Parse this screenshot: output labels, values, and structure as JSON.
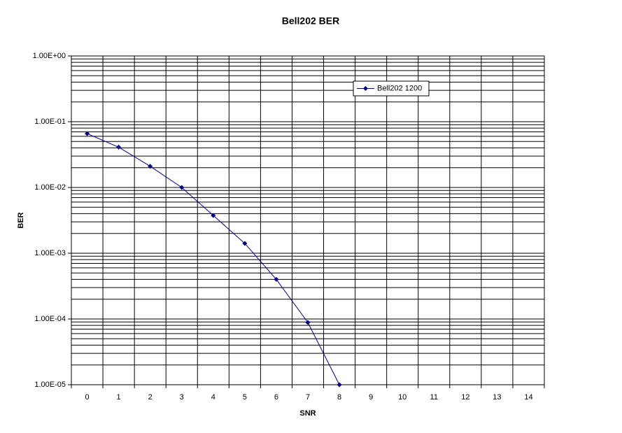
{
  "chart_data": {
    "type": "line",
    "title": "Bell202 BER",
    "x_label": "SNR",
    "y_label": "BER",
    "categories": [
      "0",
      "1",
      "2",
      "3",
      "4",
      "5",
      "6",
      "7",
      "8",
      "9",
      "10",
      "11",
      "12",
      "13",
      "14"
    ],
    "series": [
      {
        "name": "Bell202 1200",
        "color": "#000080",
        "values": [
          0.066,
          0.041,
          0.021,
          0.01,
          0.00375,
          0.00141,
          0.0004,
          8.85e-05,
          1e-05,
          null,
          null,
          null,
          null,
          null,
          null
        ]
      }
    ],
    "y_log": true,
    "ylim": [
      1e-05,
      1
    ],
    "yticks": [
      {
        "value": 1e-05,
        "label": "1.00E-05"
      },
      {
        "value": 0.0001,
        "label": "1.00E-04"
      },
      {
        "value": 0.001,
        "label": "1.00E-03"
      },
      {
        "value": 0.01,
        "label": "1.00E-02"
      },
      {
        "value": 0.1,
        "label": "1.00E-01"
      },
      {
        "value": 1,
        "label": "1.00E+00"
      }
    ],
    "grid": true,
    "minor_grid": true,
    "legend": "upper right"
  }
}
